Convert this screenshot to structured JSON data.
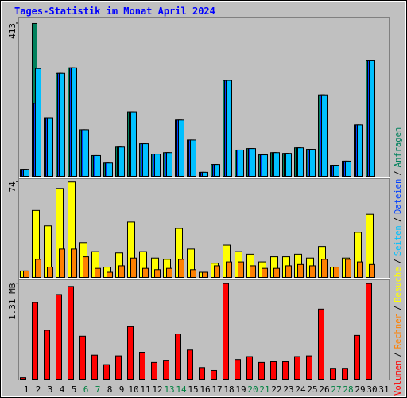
{
  "title": "Tages-Statistik im Monat April 2024",
  "legend_separator": "/",
  "chart_data": [
    {
      "type": "bar",
      "ylim": [
        0,
        428
      ],
      "yticks": [
        413
      ],
      "series": [
        {
          "name": "Anfragen",
          "color": "#00805c",
          "values": [
            19,
            413,
            158,
            278,
            293,
            126,
            56,
            36,
            79,
            173,
            88,
            60,
            64,
            152,
            98,
            11,
            32,
            259,
            71,
            75,
            58,
            64,
            62,
            77,
            73,
            220,
            30,
            41,
            139,
            312,
            null
          ]
        },
        {
          "name": "Dateien",
          "color": "#0040ff",
          "values": [
            19,
            197,
            158,
            278,
            293,
            126,
            56,
            36,
            79,
            173,
            88,
            60,
            64,
            152,
            98,
            11,
            32,
            259,
            71,
            75,
            58,
            64,
            62,
            77,
            73,
            220,
            30,
            41,
            139,
            312,
            null
          ]
        },
        {
          "name": "Seiten",
          "color": "#00c0ff",
          "values": [
            19,
            291,
            158,
            278,
            293,
            126,
            56,
            36,
            79,
            173,
            88,
            60,
            64,
            152,
            98,
            11,
            32,
            259,
            71,
            75,
            58,
            64,
            62,
            77,
            73,
            220,
            30,
            41,
            139,
            312,
            null
          ]
        }
      ]
    },
    {
      "type": "bar",
      "ylim": [
        0,
        76
      ],
      "yticks": [
        74
      ],
      "series": [
        {
          "name": "Besuche",
          "color": "#ffff00",
          "values": [
            5,
            52,
            40,
            69,
            74,
            27,
            20,
            8,
            19,
            43,
            20,
            15,
            14,
            38,
            22,
            4,
            11,
            25,
            20,
            18,
            12,
            16,
            16,
            18,
            15,
            24,
            8,
            15,
            35,
            49,
            null
          ]
        },
        {
          "name": "Rechner",
          "color": "#ff8000",
          "values": [
            5,
            14,
            8,
            22,
            22,
            16,
            7,
            4,
            9,
            15,
            7,
            6,
            7,
            14,
            6,
            4,
            9,
            12,
            12,
            9,
            7,
            7,
            9,
            10,
            9,
            14,
            8,
            14,
            12,
            10,
            null
          ]
        }
      ]
    },
    {
      "type": "bar",
      "ylim": [
        0,
        1.35
      ],
      "yticks": [
        {
          "value": 1.31,
          "label": "1.31 MB"
        }
      ],
      "categories": [
        "1",
        "2",
        "3",
        "4",
        "5",
        "6",
        "7",
        "8",
        "9",
        "10",
        "11",
        "12",
        "13",
        "14",
        "15",
        "16",
        "17",
        "18",
        "19",
        "20",
        "21",
        "22",
        "23",
        "24",
        "25",
        "26",
        "27",
        "28",
        "29",
        "30",
        "31"
      ],
      "label_colors": [
        "#000000",
        "#000000",
        "#000000",
        "#000000",
        "#000000",
        "#008040",
        "#008040",
        "#000000",
        "#000000",
        "#000000",
        "#000000",
        "#000000",
        "#008040",
        "#008040",
        "#000000",
        "#000000",
        "#000000",
        "#000000",
        "#000000",
        "#008040",
        "#008040",
        "#000000",
        "#000000",
        "#000000",
        "#000000",
        "#000000",
        "#008040",
        "#008040",
        "#000000",
        "#000000",
        "#000000"
      ],
      "series": [
        {
          "name": "Volumen",
          "color": "#ff0000",
          "values": [
            0.02,
            1.05,
            0.67,
            1.16,
            1.27,
            0.59,
            0.33,
            0.2,
            0.32,
            0.72,
            0.37,
            0.23,
            0.26,
            0.62,
            0.4,
            0.16,
            0.12,
            1.31,
            0.27,
            0.31,
            0.23,
            0.24,
            0.24,
            0.31,
            0.32,
            0.96,
            0.15,
            0.15,
            0.6,
            1.31,
            null
          ]
        }
      ]
    }
  ]
}
